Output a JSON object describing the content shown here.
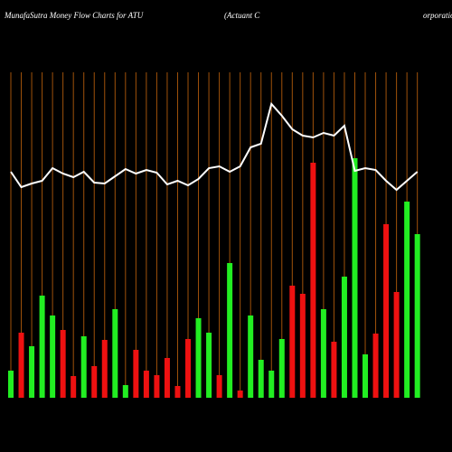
{
  "chart_data": {
    "type": "bar",
    "title": "MunafaSutra  Money Flow  Charts for ATU",
    "subtitle": "(Actuant C",
    "subtitle_tail": "orporatio",
    "categories": [
      null,
      null,
      null,
      null,
      null,
      null,
      null,
      null,
      null,
      null,
      null,
      null,
      null,
      null,
      null,
      null,
      null,
      null,
      null,
      null,
      null,
      null,
      null,
      null,
      null,
      null,
      null,
      null,
      null,
      null,
      null,
      null,
      null,
      null,
      null,
      null,
      null,
      null,
      null,
      null
    ],
    "values": [
      30,
      72,
      57,
      113,
      91,
      75,
      24,
      68,
      35,
      64,
      98,
      14,
      53,
      30,
      25,
      44,
      13,
      65,
      88,
      72,
      25,
      149,
      8,
      91,
      42,
      30,
      65,
      124,
      115,
      260,
      98,
      62,
      134,
      265,
      48,
      71,
      192,
      117,
      217,
      181
    ],
    "colors": [
      "#22ee22",
      "#ee1111",
      "#22ee22",
      "#22ee22",
      "#22ee22",
      "#ee1111",
      "#ee1111",
      "#22ee22",
      "#ee1111",
      "#ee1111",
      "#22ee22",
      "#22ee22",
      "#ee1111",
      "#ee1111",
      "#ee1111",
      "#ee1111",
      "#ee1111",
      "#ee1111",
      "#22ee22",
      "#22ee22",
      "#ee1111",
      "#22ee22",
      "#ee1111",
      "#22ee22",
      "#22ee22",
      "#22ee22",
      "#22ee22",
      "#ee1111",
      "#ee1111",
      "#ee1111",
      "#22ee22",
      "#ee1111",
      "#22ee22",
      "#22ee22",
      "#22ee22",
      "#ee1111",
      "#ee1111",
      "#ee1111",
      "#22ee22",
      "#22ee22"
    ],
    "line": {
      "color": "#ffffff",
      "values": [
        250,
        233,
        237,
        240,
        254,
        248,
        244,
        250,
        238,
        237,
        245,
        253,
        248,
        252,
        249,
        236,
        240,
        235,
        242,
        254,
        256,
        250,
        256,
        277,
        281,
        325,
        312,
        297,
        290,
        288,
        293,
        290,
        301,
        251,
        254,
        252,
        240,
        230,
        240,
        250
      ]
    },
    "grid_color": "#a0520a"
  }
}
